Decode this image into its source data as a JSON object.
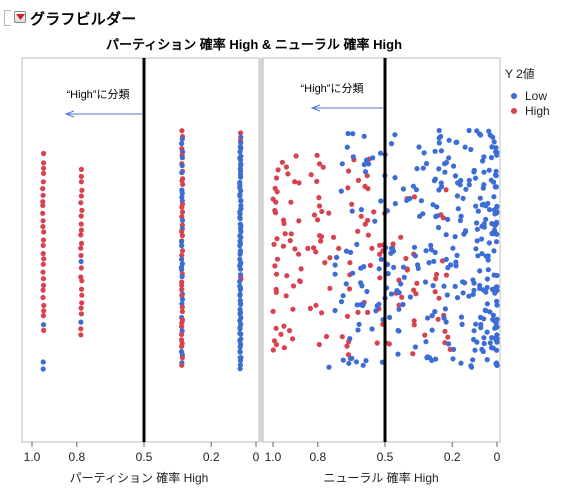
{
  "app": {
    "title": "グラフビルダー",
    "menu_icon": "red-triangle-menu-icon"
  },
  "chart_data": {
    "type": "scatter",
    "title": "パーティション 確率 High & ニューラル 確率 High",
    "legend": {
      "title": "Y 2値",
      "placement": "right",
      "entries": [
        {
          "label": "Low",
          "color": "#3c6cd6"
        },
        {
          "label": "High",
          "color": "#d8424f"
        }
      ]
    },
    "panels": [
      {
        "xlabel": "パーティション 確率 High",
        "xlim": [
          1.0,
          0.0
        ],
        "x_ticks": [
          "1.0",
          "0.8",
          "0.5",
          "0.2",
          "0"
        ],
        "reference_line": 0.5,
        "annotation": "“High”に分類",
        "clusters": [
          {
            "x": 0.95,
            "mix": "mostly High"
          },
          {
            "x": 0.78,
            "mix": "mostly High"
          },
          {
            "x": 0.33,
            "mix": "mixed"
          },
          {
            "x": 0.07,
            "mix": "mostly Low"
          }
        ]
      },
      {
        "xlabel": "ニューラル 確率 High",
        "xlim": [
          1.0,
          0.0
        ],
        "x_ticks": [
          "1.0",
          "0.8",
          "0.5",
          "0.2",
          "0"
        ],
        "reference_line": 0.5,
        "annotation": "“High”に分類",
        "distribution": "continuous, High concentrated near 1.0, Low concentrated near 0"
      }
    ],
    "y_jitter": true,
    "grid": false,
    "colors": {
      "low": "#3c6cd6",
      "high": "#d8424f",
      "reference": "#000000",
      "arrow": "#4f78d8"
    }
  }
}
